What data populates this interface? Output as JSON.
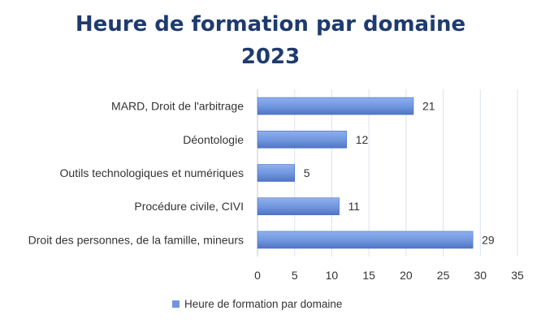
{
  "chart_data": {
    "type": "bar",
    "orientation": "horizontal",
    "title": "Heure de formation par domaine",
    "subtitle": "2023",
    "categories": [
      "MARD, Droit de l'arbitrage",
      "Déontologie",
      "Outils technologiques et numériques",
      "Procédure civile, CIVI",
      "Droit des personnes, de la famille, mineurs"
    ],
    "series": [
      {
        "name": "Heure de formation par domaine",
        "values": [
          21,
          12,
          5,
          11,
          29
        ],
        "color": "#6f95de"
      }
    ],
    "xlim": [
      0,
      35
    ],
    "xticks": [
      0,
      5,
      10,
      15,
      20,
      25,
      30,
      35
    ],
    "grid": "vertical",
    "legend_position": "bottom"
  }
}
